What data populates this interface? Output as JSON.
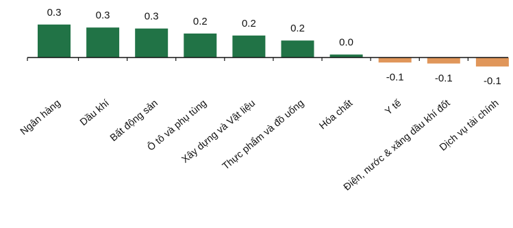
{
  "chart_data": {
    "type": "bar",
    "categories": [
      "Ngân hàng",
      "Dầu khí",
      "Bất động sản",
      "Ô tô và phụ tùng",
      "Xây dựng và Vật liệu",
      "Thực phẩm và đồ uống",
      "Hóa chất",
      "Y tế",
      "Điện, nước & xăng dầu khí đốt",
      "Dịch vụ tài chính"
    ],
    "values": [
      0.33,
      0.3,
      0.29,
      0.24,
      0.22,
      0.17,
      0.03,
      -0.05,
      -0.06,
      -0.09
    ],
    "value_labels": [
      "0.3",
      "0.3",
      "0.3",
      "0.2",
      "0.2",
      "0.2",
      "0.0",
      "-0.1",
      "-0.1",
      "-0.1"
    ],
    "title": "",
    "xlabel": "",
    "ylabel": "",
    "ylim": [
      -0.1,
      0.35
    ],
    "grid": false,
    "legend": "none",
    "colors": {
      "positive": "#217346",
      "negative": "#e0965a",
      "axis": "#111111"
    }
  }
}
